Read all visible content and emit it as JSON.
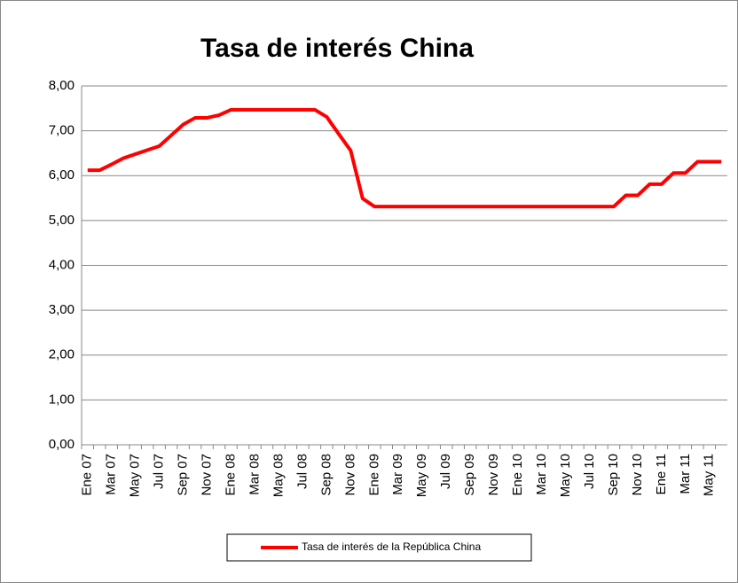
{
  "chart_data": {
    "type": "line",
    "title": "Tasa de interés China",
    "categories": [
      "Ene 07",
      null,
      "Mar 07",
      null,
      "May 07",
      null,
      "Jul 07",
      null,
      "Sep 07",
      null,
      "Nov 07",
      null,
      "Ene 08",
      null,
      "Mar 08",
      null,
      "May 08",
      null,
      "Jul 08",
      null,
      "Sep 08",
      null,
      "Nov 08",
      null,
      "Ene 09",
      null,
      "Mar 09",
      null,
      "May 09",
      null,
      "Jul 09",
      null,
      "Sep 09",
      null,
      "Nov 09",
      null,
      "Ene 10",
      null,
      "Mar 10",
      null,
      "May 10",
      null,
      "Jul 10",
      null,
      "Sep 10",
      null,
      "Nov 10",
      null,
      "Ene 11",
      null,
      "Mar 11",
      null,
      "May 11",
      null
    ],
    "series": [
      {
        "name": "Tasa de interés de la República China",
        "color": "#ff0000",
        "values": [
          6.12,
          6.12,
          6.25,
          6.39,
          6.48,
          6.57,
          6.66,
          6.9,
          7.14,
          7.29,
          7.29,
          7.35,
          7.47,
          7.47,
          7.47,
          7.47,
          7.47,
          7.47,
          7.47,
          7.47,
          7.31,
          6.93,
          6.56,
          5.49,
          5.31,
          5.31,
          5.31,
          5.31,
          5.31,
          5.31,
          5.31,
          5.31,
          5.31,
          5.31,
          5.31,
          5.31,
          5.31,
          5.31,
          5.31,
          5.31,
          5.31,
          5.31,
          5.31,
          5.31,
          5.31,
          5.56,
          5.56,
          5.81,
          5.81,
          6.06,
          6.06,
          6.31,
          6.31,
          6.31
        ]
      }
    ],
    "ylim": [
      0,
      8
    ],
    "yticks": [
      {
        "value": 0,
        "label": "0,00"
      },
      {
        "value": 1,
        "label": "1,00"
      },
      {
        "value": 2,
        "label": "2,00"
      },
      {
        "value": 3,
        "label": "3,00"
      },
      {
        "value": 4,
        "label": "4,00"
      },
      {
        "value": 5,
        "label": "5,00"
      },
      {
        "value": 6,
        "label": "6,00"
      },
      {
        "value": 7,
        "label": "7,00"
      },
      {
        "value": 8,
        "label": "8,00"
      }
    ],
    "grid": true,
    "legend": "bottom"
  }
}
